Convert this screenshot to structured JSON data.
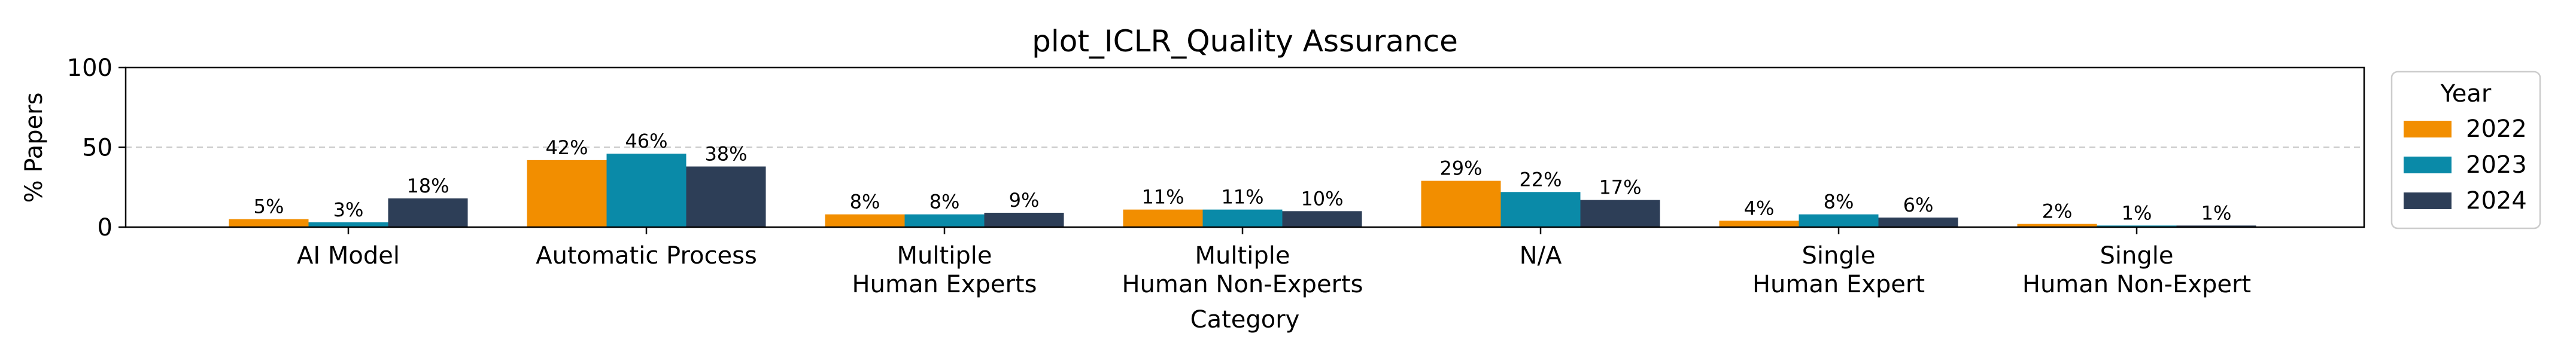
{
  "chart_data": {
    "type": "bar",
    "title": "plot_ICLR_Quality Assurance",
    "xlabel": "Category",
    "ylabel": "% Papers",
    "ylim": [
      0,
      100
    ],
    "yticks": [
      "0",
      "50",
      "100"
    ],
    "grid": "dashed line at 50",
    "categories": [
      [
        "AI Model"
      ],
      [
        "Automatic Process"
      ],
      [
        "Multiple",
        "Human Experts"
      ],
      [
        "Multiple",
        "Human Non-Experts"
      ],
      [
        "N/A"
      ],
      [
        "Single",
        "Human Expert"
      ],
      [
        "Single",
        "Human Non-Expert"
      ]
    ],
    "series": [
      {
        "name": "2022",
        "color": "#f28e00",
        "values": [
          5,
          42,
          8,
          11,
          29,
          4,
          2
        ],
        "labels": [
          "5%",
          "42%",
          "8%",
          "11%",
          "29%",
          "4%",
          "2%"
        ]
      },
      {
        "name": "2023",
        "color": "#0a8aa8",
        "values": [
          3,
          46,
          8,
          11,
          22,
          8,
          1
        ],
        "labels": [
          "3%",
          "46%",
          "8%",
          "11%",
          "22%",
          "8%",
          "1%"
        ]
      },
      {
        "name": "2024",
        "color": "#2d3e57",
        "values": [
          18,
          38,
          9,
          10,
          17,
          6,
          1
        ],
        "labels": [
          "18%",
          "38%",
          "9%",
          "10%",
          "17%",
          "6%",
          "1%"
        ]
      }
    ],
    "legend": {
      "title": "Year",
      "position": "outside right"
    }
  }
}
